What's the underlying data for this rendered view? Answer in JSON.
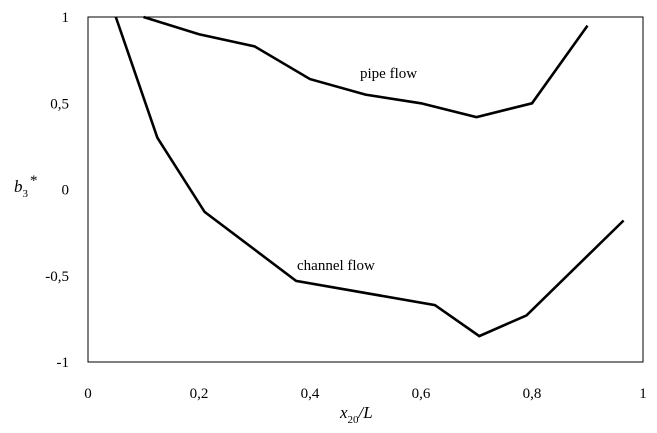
{
  "chart_data": {
    "type": "line",
    "xlim": [
      0,
      1
    ],
    "ylim": [
      -1,
      1
    ],
    "x_ticks": [
      "0",
      "0,2",
      "0,4",
      "0,6",
      "0,8",
      "1"
    ],
    "y_ticks": [
      "1",
      "0,5",
      "0",
      "-0,5",
      "-1"
    ],
    "x_tick_values": [
      0,
      0.2,
      0.4,
      0.6,
      0.8,
      1
    ],
    "y_tick_values": [
      1,
      0.5,
      0,
      -0.5,
      -1
    ],
    "xlabel": {
      "main": "x",
      "sub": "20",
      "rest": "/L"
    },
    "ylabel": {
      "main": "b",
      "sub": "3",
      "sup": "*"
    },
    "grid": false,
    "legend": "none",
    "line_color": "#000000",
    "series": [
      {
        "annotation": "pipe flow",
        "x": [
          0.1,
          0.2,
          0.3,
          0.4,
          0.5,
          0.6,
          0.7,
          0.8,
          0.9
        ],
        "y": [
          1.0,
          0.9,
          0.83,
          0.64,
          0.55,
          0.5,
          0.42,
          0.5,
          0.95
        ]
      },
      {
        "annotation": "channel flow",
        "x": [
          0.05,
          0.125,
          0.21,
          0.375,
          0.625,
          0.705,
          0.79,
          0.965
        ],
        "y": [
          1.0,
          0.3,
          -0.13,
          -0.53,
          -0.67,
          -0.85,
          -0.73,
          -0.18
        ]
      }
    ]
  }
}
